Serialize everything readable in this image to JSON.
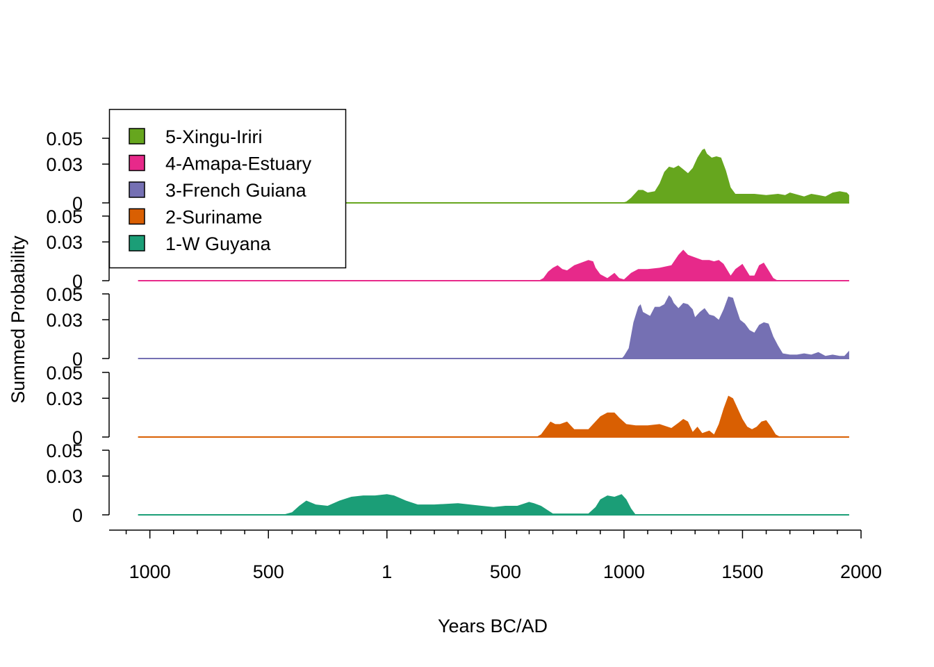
{
  "chart_data": {
    "type": "area",
    "xlabel": "Years BC/AD",
    "ylabel": "Summed Probability",
    "x_ticks": [
      -1000,
      -500,
      1,
      500,
      1000,
      1500,
      2000
    ],
    "x_tick_labels": [
      "1000",
      "500",
      "1",
      "500",
      "1000",
      "1500",
      "2000"
    ],
    "xlim": [
      -1172,
      2000
    ],
    "data_xrange": [
      -1050,
      1950
    ],
    "y_ticks": [
      0,
      0.03,
      0.05
    ],
    "y_tick_labels": [
      "0",
      "0.03",
      "0.05"
    ],
    "ylim": [
      0,
      0.05
    ],
    "legend_position": "top-left",
    "series": [
      {
        "name": "5-Xingu-Iriri",
        "color": "#66A61E",
        "x": [
          -1050,
          990,
          1010,
          1030,
          1060,
          1080,
          1100,
          1130,
          1150,
          1170,
          1190,
          1210,
          1230,
          1250,
          1270,
          1290,
          1310,
          1330,
          1340,
          1350,
          1370,
          1390,
          1410,
          1430,
          1450,
          1470,
          1500,
          1550,
          1600,
          1650,
          1680,
          1700,
          1720,
          1760,
          1790,
          1820,
          1850,
          1880,
          1910,
          1940,
          1950
        ],
        "values": [
          0,
          0,
          0.001,
          0.004,
          0.01,
          0.01,
          0.008,
          0.009,
          0.015,
          0.024,
          0.028,
          0.027,
          0.029,
          0.026,
          0.023,
          0.027,
          0.035,
          0.041,
          0.042,
          0.038,
          0.035,
          0.036,
          0.035,
          0.025,
          0.012,
          0.007,
          0.007,
          0.007,
          0.006,
          0.007,
          0.006,
          0.008,
          0.007,
          0.005,
          0.007,
          0.006,
          0.005,
          0.008,
          0.009,
          0.008,
          0.006
        ]
      },
      {
        "name": "4-Amapa-Estuary",
        "color": "#E7298A",
        "x": [
          -1050,
          640,
          660,
          680,
          700,
          720,
          740,
          760,
          790,
          820,
          850,
          870,
          880,
          900,
          930,
          960,
          980,
          1000,
          1030,
          1060,
          1100,
          1150,
          1200,
          1230,
          1250,
          1270,
          1300,
          1330,
          1360,
          1380,
          1400,
          1420,
          1450,
          1470,
          1500,
          1530,
          1550,
          1570,
          1590,
          1610,
          1630,
          1650,
          1670,
          1950
        ],
        "values": [
          0,
          0,
          0.002,
          0.007,
          0.01,
          0.012,
          0.009,
          0.008,
          0.012,
          0.014,
          0.016,
          0.015,
          0.01,
          0.005,
          0.002,
          0.006,
          0.002,
          0.001,
          0.006,
          0.009,
          0.009,
          0.01,
          0.012,
          0.02,
          0.024,
          0.02,
          0.018,
          0.016,
          0.016,
          0.015,
          0.016,
          0.013,
          0.004,
          0.009,
          0.013,
          0.004,
          0.004,
          0.012,
          0.014,
          0.008,
          0.002,
          0.0,
          0,
          0
        ]
      },
      {
        "name": "3-French Guiana",
        "color": "#7570B3",
        "x": [
          -1050,
          990,
          1000,
          1020,
          1040,
          1060,
          1070,
          1080,
          1090,
          1110,
          1130,
          1150,
          1170,
          1190,
          1200,
          1210,
          1230,
          1250,
          1270,
          1290,
          1300,
          1320,
          1340,
          1360,
          1380,
          1400,
          1420,
          1440,
          1460,
          1470,
          1490,
          1510,
          1530,
          1550,
          1570,
          1590,
          1610,
          1630,
          1650,
          1670,
          1700,
          1730,
          1760,
          1790,
          1820,
          1850,
          1880,
          1910,
          1930,
          1950
        ],
        "values": [
          0,
          0,
          0.002,
          0.008,
          0.028,
          0.04,
          0.042,
          0.036,
          0.035,
          0.033,
          0.04,
          0.04,
          0.042,
          0.049,
          0.047,
          0.043,
          0.039,
          0.043,
          0.042,
          0.038,
          0.032,
          0.036,
          0.039,
          0.034,
          0.033,
          0.03,
          0.038,
          0.048,
          0.047,
          0.041,
          0.03,
          0.027,
          0.022,
          0.02,
          0.026,
          0.028,
          0.027,
          0.017,
          0.01,
          0.004,
          0.003,
          0.003,
          0.004,
          0.003,
          0.005,
          0.002,
          0.003,
          0.002,
          0.002,
          0.006
        ]
      },
      {
        "name": "2-Suriname",
        "color": "#D95F02",
        "x": [
          -1050,
          630,
          650,
          670,
          690,
          710,
          730,
          760,
          790,
          820,
          850,
          870,
          900,
          930,
          960,
          980,
          1010,
          1050,
          1100,
          1150,
          1200,
          1230,
          1250,
          1270,
          1290,
          1310,
          1330,
          1360,
          1380,
          1400,
          1420,
          1440,
          1460,
          1480,
          1500,
          1520,
          1540,
          1560,
          1580,
          1600,
          1620,
          1640,
          1660,
          1950
        ],
        "values": [
          0,
          0,
          0.002,
          0.007,
          0.012,
          0.01,
          0.01,
          0.012,
          0.006,
          0.006,
          0.006,
          0.01,
          0.016,
          0.019,
          0.019,
          0.015,
          0.01,
          0.009,
          0.009,
          0.01,
          0.007,
          0.011,
          0.014,
          0.012,
          0.004,
          0.008,
          0.003,
          0.005,
          0.002,
          0.01,
          0.022,
          0.032,
          0.03,
          0.022,
          0.014,
          0.008,
          0.006,
          0.008,
          0.012,
          0.013,
          0.008,
          0.002,
          0,
          0
        ]
      },
      {
        "name": "1-W Guyana",
        "color": "#1B9E77",
        "x": [
          -1050,
          -440,
          -400,
          -370,
          -340,
          -300,
          -250,
          -200,
          -150,
          -100,
          -50,
          0,
          30,
          80,
          130,
          200,
          300,
          400,
          450,
          500,
          550,
          600,
          620,
          650,
          700,
          750,
          800,
          850,
          880,
          900,
          930,
          960,
          990,
          1010,
          1030,
          1050,
          1950
        ],
        "values": [
          0,
          0,
          0.002,
          0.007,
          0.011,
          0.008,
          0.007,
          0.011,
          0.014,
          0.015,
          0.015,
          0.016,
          0.015,
          0.011,
          0.008,
          0.008,
          0.009,
          0.007,
          0.006,
          0.007,
          0.007,
          0.01,
          0.009,
          0.007,
          0.001,
          0.001,
          0.001,
          0.001,
          0.006,
          0.012,
          0.015,
          0.014,
          0.016,
          0.012,
          0.005,
          0,
          0
        ]
      }
    ],
    "legend": [
      "5-Xingu-Iriri",
      "4-Amapa-Estuary",
      "3-French Guiana",
      "2-Suriname",
      "1-W Guyana"
    ]
  }
}
